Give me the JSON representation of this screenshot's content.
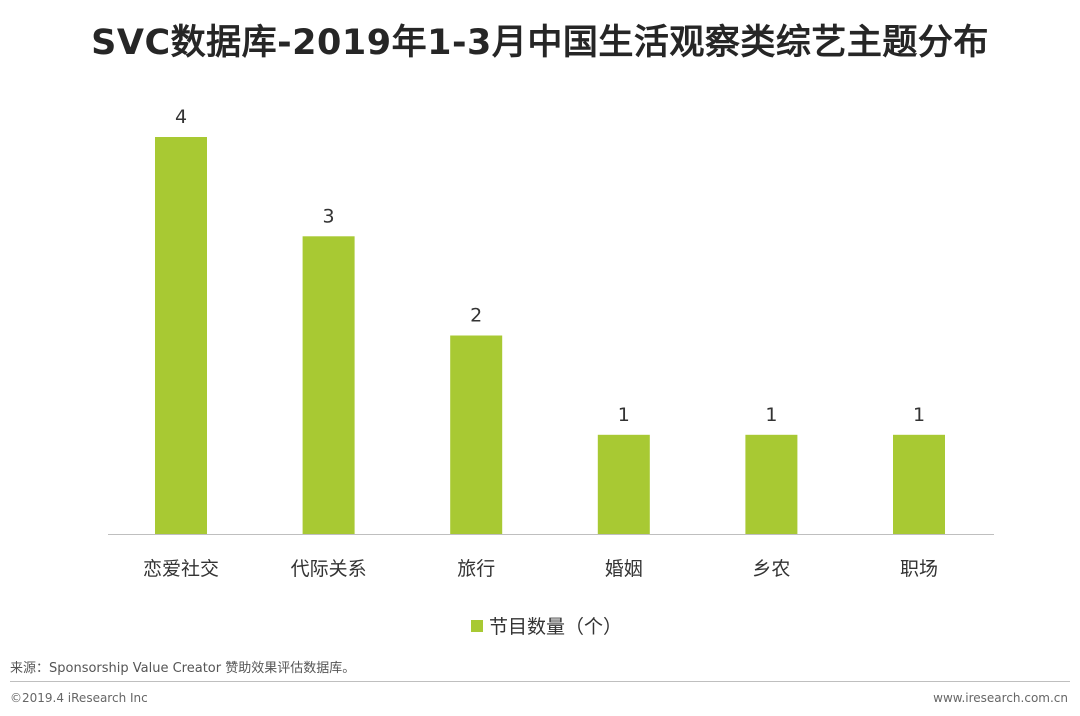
{
  "chart_data": {
    "type": "bar",
    "title": "SVC数据库-2019年1-3月中国生活观察类综艺主题分布",
    "categories": [
      "恋爱社交",
      "代际关系",
      "旅行",
      "婚姻",
      "乡农",
      "职场"
    ],
    "series": [
      {
        "name": "节目数量（个）",
        "values": [
          4,
          3,
          2,
          1,
          1,
          1
        ],
        "color": "#a8c933"
      }
    ],
    "ylim": [
      0,
      4
    ],
    "xlabel": "",
    "ylabel": "",
    "grid": false,
    "legend": "bottom"
  },
  "footer": {
    "source": "来源：Sponsorship Value Creator 赞助效果评估数据库。",
    "copyright": "©2019.4 iResearch Inc",
    "website": "www.iresearch.com.cn"
  },
  "colors": {
    "bar": "#a8c933",
    "axis": "#bfbfbf",
    "text": "#333333"
  }
}
